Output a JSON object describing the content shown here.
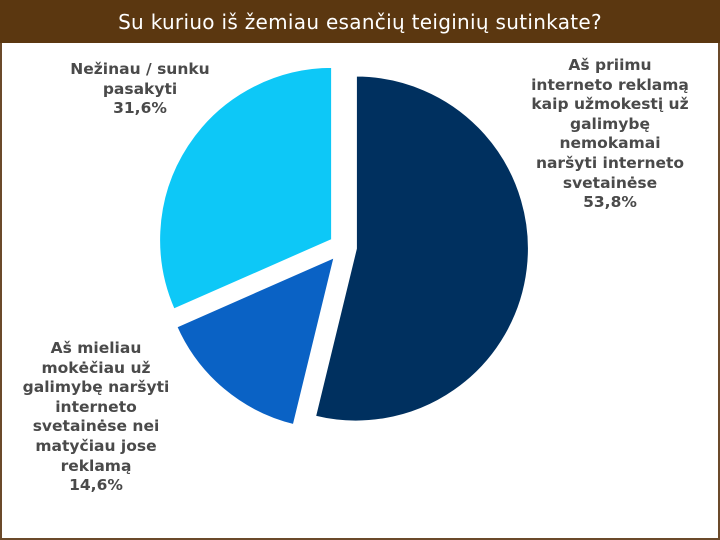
{
  "page": {
    "title": "Su kuriuo iš žemiau esančių teiginių sutinkate?"
  },
  "chart_data": {
    "type": "pie",
    "title": "Su kuriuo iš žemiau esančių teiginių sutinkate?",
    "slices": [
      {
        "label_lines": [
          "Aš priimu",
          "interneto reklamą",
          "kaip užmokestį už",
          "galimybę",
          "nemokamai",
          "naršyti interneto",
          "svetainėse"
        ],
        "value": 53.8,
        "value_text": "53,8%",
        "color": "#00305f"
      },
      {
        "label_lines": [
          "Aš mieliau",
          "mokėčiau už",
          "galimybę naršyti",
          "interneto",
          "svetainėse nei",
          "matyčiau jose",
          "reklamą"
        ],
        "value": 14.6,
        "value_text": "14,6%",
        "color": "#0a62c5"
      },
      {
        "label_lines": [
          "Nežinau / sunku",
          "pasakyti"
        ],
        "value": 31.6,
        "value_text": "31,6%",
        "color": "#0dc8f7"
      }
    ],
    "start": "12 o'clock",
    "direction": "clockwise",
    "exploded": true
  }
}
